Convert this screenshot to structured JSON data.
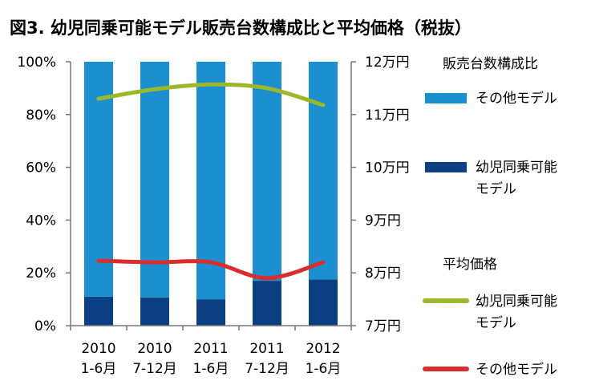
{
  "chart_data": {
    "type": "bar",
    "title": "図3. 幼児同乗可能モデル販売台数構成比と平均価格（税抜）",
    "categories": [
      [
        "2010",
        "1-6月"
      ],
      [
        "2010",
        "7-12月"
      ],
      [
        "2011",
        "1-6月"
      ],
      [
        "2011",
        "7-12月"
      ],
      [
        "2012",
        "1-6月"
      ]
    ],
    "left_axis": {
      "ylim": [
        0,
        100
      ],
      "ticks": [
        "0%",
        "20%",
        "40%",
        "60%",
        "80%",
        "100%"
      ]
    },
    "right_axis": {
      "ylim": [
        7,
        12
      ],
      "ticks": [
        "7万円",
        "8万円",
        "9万円",
        "10万円",
        "11万円",
        "12万円"
      ]
    },
    "bar_series": [
      {
        "name": "その他モデル",
        "values": [
          89,
          89.3,
          90,
          83,
          82.5
        ],
        "color": "#1b8fd0"
      },
      {
        "name": "幼児同乗可能モデル",
        "values": [
          11,
          10.7,
          10,
          17,
          17.5
        ],
        "color": "#0d3f84"
      }
    ],
    "line_series": [
      {
        "name": "幼児同乗可能モデル",
        "values": [
          11.3,
          11.48,
          11.57,
          11.5,
          11.18
        ],
        "color": "#9ab82a"
      },
      {
        "name": "その他モデル",
        "values": [
          8.23,
          8.2,
          8.2,
          7.9,
          8.2
        ],
        "color": "#d92e2e"
      }
    ],
    "legend": {
      "placement": "right",
      "bar_group_title": "販売台数構成比",
      "line_group_title": "平均価格",
      "bar_items": [
        {
          "lines": [
            "その他モデル"
          ],
          "color": "#1b8fd0"
        },
        {
          "lines": [
            "幼児同乗可能",
            "モデル"
          ],
          "color": "#0d3f84"
        }
      ],
      "line_items": [
        {
          "lines": [
            "幼児同乗可能",
            "モデル"
          ],
          "color": "#9ab82a"
        },
        {
          "lines": [
            "その他モデル"
          ],
          "color": "#d92e2e"
        }
      ]
    },
    "grid": false
  }
}
